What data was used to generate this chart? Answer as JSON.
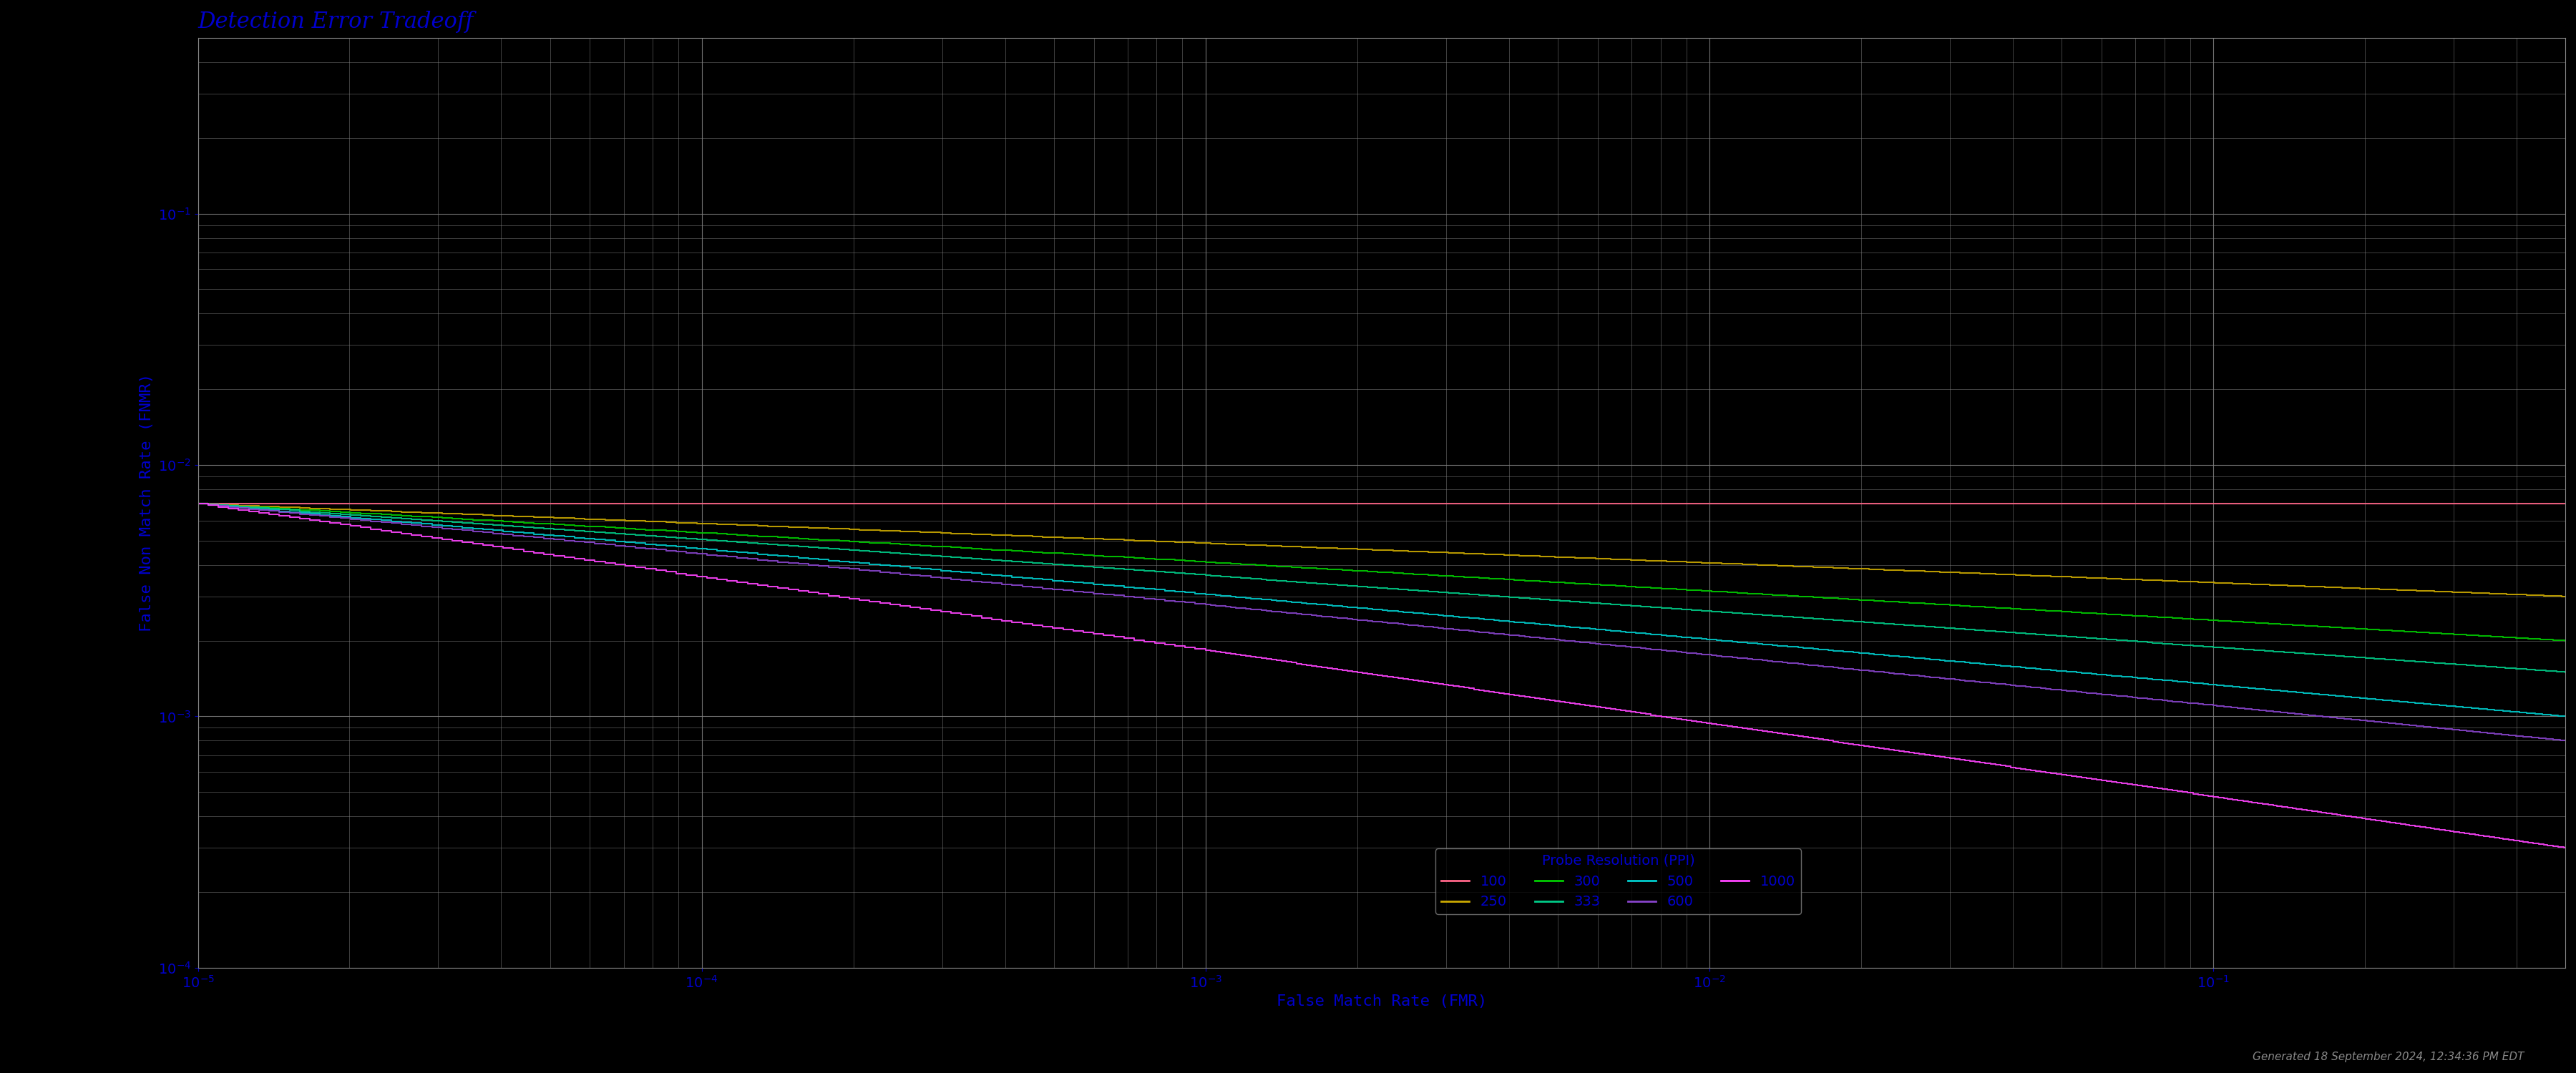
{
  "title": "Detection Error Tradeoff",
  "xlabel": "False Match Rate (FMR)",
  "ylabel": "False Non Match Rate (FNMR)",
  "background_color": "#000000",
  "text_color": "#0000cc",
  "grid_color": "#808080",
  "title_fontsize": 22,
  "label_fontsize": 16,
  "tick_fontsize": 14,
  "legend_fontsize": 14,
  "xmin": 1e-05,
  "xmax": 0.5,
  "ymin": 0.0001,
  "ymax": 0.5,
  "series": [
    {
      "label": "100",
      "color": "#ff6688",
      "ppi": 100
    },
    {
      "label": "250",
      "color": "#ccaa00",
      "ppi": 250
    },
    {
      "label": "300",
      "color": "#00cc00",
      "ppi": 300
    },
    {
      "label": "333",
      "color": "#00cc88",
      "ppi": 333
    },
    {
      "label": "500",
      "color": "#00cccc",
      "ppi": 500
    },
    {
      "label": "600",
      "color": "#8844cc",
      "ppi": 600
    },
    {
      "label": "1000",
      "color": "#ff44ff",
      "ppi": 1000
    }
  ],
  "footnote": "Generated 18 September 2024, 12:34:36 PM EDT"
}
